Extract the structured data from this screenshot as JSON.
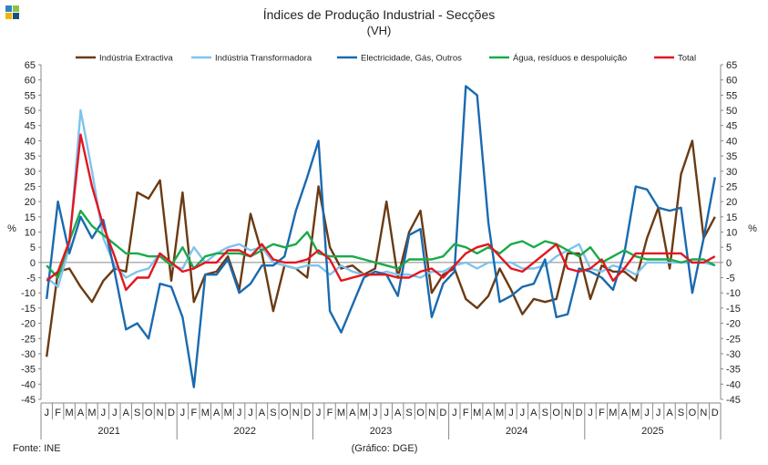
{
  "logo": {
    "colors": [
      "#2e86c1",
      "#8bc34a",
      "#f2b705",
      "#1a5276"
    ]
  },
  "chart_data": {
    "type": "line",
    "title": "Índices de Produção Industrial - Secções",
    "subtitle": "(VH)",
    "ylabel_left": "%",
    "ylabel_right": "%",
    "ylim": [
      -45,
      65
    ],
    "yticks": [
      65,
      60,
      55,
      50,
      45,
      40,
      35,
      30,
      25,
      20,
      15,
      10,
      5,
      0,
      -5,
      -10,
      -15,
      -20,
      -25,
      -30,
      -35,
      -40,
      -45
    ],
    "month_labels": [
      "J",
      "F",
      "M",
      "A",
      "M",
      "J",
      "J",
      "A",
      "S",
      "O",
      "N",
      "D"
    ],
    "years": [
      "2021",
      "2022",
      "2023",
      "2024",
      "2025"
    ],
    "series": [
      {
        "name": "Indústria Extractiva",
        "color": "#6b3a12",
        "values": [
          -31,
          -3,
          -2,
          -8,
          -13,
          -6,
          -2,
          -3,
          23,
          21,
          27,
          -6,
          23,
          -13,
          -4,
          -3,
          2,
          -9,
          16,
          3,
          -16,
          -1,
          -2,
          -5,
          25,
          5,
          -2,
          -1,
          -4,
          -2,
          20,
          -5,
          10,
          17,
          -10,
          -4,
          -2,
          -12,
          -15,
          -11,
          -2,
          -9,
          -17,
          -12,
          -13,
          -12,
          3,
          3,
          -12,
          -1,
          -3,
          -3,
          -6,
          8,
          18,
          -2,
          29,
          40,
          8,
          15
        ],
        "legend_label": "Indústria Extractiva"
      },
      {
        "name": "Indústria Transformadora",
        "color": "#7fc3ee",
        "values": [
          -5,
          -8,
          5,
          50,
          30,
          8,
          -1,
          -5,
          -3,
          -2,
          3,
          -1,
          -2,
          5,
          0,
          3,
          5,
          6,
          4,
          5,
          0,
          -1,
          -2,
          -1,
          -1,
          -4,
          -1,
          -3,
          -4,
          -4,
          -3,
          -4,
          -4,
          -5,
          -3,
          -3,
          -1,
          0,
          -2,
          0,
          0,
          0,
          -2,
          -2,
          -1,
          2,
          4,
          6,
          -2,
          -3,
          -1,
          -2,
          -4,
          0,
          0,
          0,
          0,
          0,
          0,
          -1
        ],
        "legend_label": "Indústria Transformadora"
      },
      {
        "name": "Electricidade, Gás, Outros",
        "color": "#1a6aaf",
        "values": [
          -12,
          20,
          3,
          15,
          8,
          14,
          -3,
          -22,
          -20,
          -25,
          -7,
          -8,
          -18,
          -41,
          -4,
          -4,
          1,
          -10,
          -7,
          -1,
          -1,
          2,
          17,
          28,
          40,
          -16,
          -23,
          -14,
          -5,
          -3,
          -4,
          -11,
          9,
          11,
          -18,
          -7,
          -3,
          58,
          55,
          13,
          -13,
          -11,
          -8,
          -7,
          1,
          -18,
          -17,
          -2,
          -3,
          -5,
          -9,
          3,
          25,
          24,
          18,
          17,
          18,
          -10,
          8,
          28
        ],
        "legend_label": "Electricidade, Gás, Outros"
      },
      {
        "name": "Água, resíduos e despoluição",
        "color": "#1aaa4a",
        "values": [
          -1,
          -5,
          7,
          17,
          12,
          9,
          6,
          3,
          3,
          2,
          2,
          -1,
          5,
          -2,
          2,
          3,
          3,
          3,
          2,
          4,
          6,
          5,
          6,
          10,
          3,
          2,
          2,
          2,
          1,
          0,
          -1,
          -2,
          1,
          1,
          1,
          2,
          6,
          5,
          3,
          5,
          3,
          6,
          7,
          5,
          7,
          6,
          4,
          2,
          5,
          0,
          2,
          4,
          2,
          1,
          1,
          1,
          0,
          1,
          1,
          -1
        ],
        "legend_label": "Água, resíduos e despoluição"
      },
      {
        "name": "Total",
        "color": "#e3161f",
        "values": [
          -6,
          -3,
          7,
          42,
          25,
          12,
          2,
          -9,
          -5,
          -5,
          3,
          0,
          -3,
          -2,
          0,
          0,
          4,
          4,
          2,
          6,
          1,
          0,
          0,
          1,
          4,
          1,
          -6,
          -5,
          -4,
          -4,
          -4,
          -5,
          -5,
          -3,
          -2,
          -5,
          -1,
          3,
          5,
          6,
          2,
          -2,
          -3,
          0,
          3,
          6,
          -2,
          -3,
          -2,
          1,
          -6,
          -2,
          3,
          3,
          3,
          3,
          3,
          0,
          0,
          2
        ],
        "legend_label": "Total"
      }
    ]
  },
  "footer": {
    "source": "Fonte: INE",
    "credit": "(Gráfico: DGE)"
  }
}
